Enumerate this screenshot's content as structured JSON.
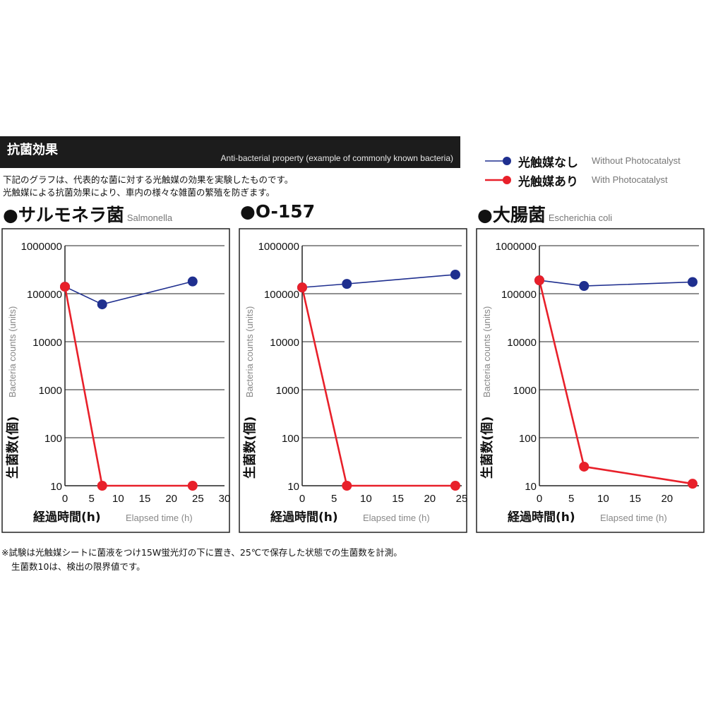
{
  "header": {
    "title": "抗菌効果",
    "subtitle": "Anti-bacterial property (example of commonly known bacteria)"
  },
  "intro": {
    "line1": "下記のグラフは、代表的な菌に対する光触媒の効果を実験したものです。",
    "line2": "光触媒による抗菌効果により、車内の様々な雑菌の繁殖を防ぎます。"
  },
  "legend": {
    "without": {
      "jp": "光触媒なし",
      "en": "Without Photocatalyst",
      "color": "#1f2f8f"
    },
    "with": {
      "jp": "光触媒あり",
      "en": "With Photocatalyst",
      "color": "#e8202a"
    }
  },
  "footnote": {
    "line1": "※試験は光触媒シートに菌液をつけ15W蛍光灯の下に置き、25℃で保存した状態での生菌数を計測。",
    "line2": "生菌数10は、検出の限界値です。"
  },
  "chart_data": [
    {
      "type": "line",
      "title": "●サルモネラ菌",
      "title_en": "Salmonella",
      "ylabel": "生菌数(個)",
      "ylabel_en": "Bacteria counts (units)",
      "xlabel": "経過時間(h)",
      "xlabel_en": "Elapsed time (h)",
      "yscale": "log",
      "ylim": [
        10,
        1000000
      ],
      "yticks": [
        "1000000",
        "100000",
        "10000",
        "1000",
        "100",
        "10"
      ],
      "xlim": [
        0,
        30
      ],
      "xticks": [
        "0",
        "5",
        "10",
        "15",
        "20",
        "25",
        "30"
      ],
      "grid": "horizontal",
      "series": [
        {
          "name": "光触媒なし",
          "color": "#1f2f8f",
          "x": [
            0,
            7,
            24
          ],
          "y": [
            140000,
            60000,
            180000
          ]
        },
        {
          "name": "光触媒あり",
          "color": "#e8202a",
          "x": [
            0,
            7,
            24
          ],
          "y": [
            140000,
            10,
            10
          ]
        }
      ]
    },
    {
      "type": "line",
      "title": "●O-157",
      "title_en": "",
      "ylabel": "生菌数(個)",
      "ylabel_en": "Bacteria counts (units)",
      "xlabel": "経過時間(h)",
      "xlabel_en": "Elapsed time (h)",
      "yscale": "log",
      "ylim": [
        10,
        1000000
      ],
      "yticks": [
        "1000000",
        "100000",
        "10000",
        "1000",
        "100",
        "10"
      ],
      "xlim": [
        0,
        25
      ],
      "xticks": [
        "0",
        "5",
        "10",
        "15",
        "20",
        "25"
      ],
      "grid": "horizontal",
      "series": [
        {
          "name": "光触媒なし",
          "color": "#1f2f8f",
          "x": [
            0,
            7,
            24
          ],
          "y": [
            135000,
            160000,
            250000
          ]
        },
        {
          "name": "光触媒あり",
          "color": "#e8202a",
          "x": [
            0,
            7,
            24
          ],
          "y": [
            135000,
            10,
            10
          ]
        }
      ]
    },
    {
      "type": "line",
      "title": "●大腸菌",
      "title_en": "Escherichia coli",
      "ylabel": "生菌数(個)",
      "ylabel_en": "Bacteria counts (units)",
      "xlabel": "経過時間(h)",
      "xlabel_en": "Elapsed time (h)",
      "yscale": "log",
      "ylim": [
        10,
        1000000
      ],
      "yticks": [
        "1000000",
        "100000",
        "10000",
        "1000",
        "100",
        "10"
      ],
      "xlim": [
        0,
        25
      ],
      "xticks": [
        "0",
        "5",
        "10",
        "15",
        "20"
      ],
      "grid": "horizontal",
      "series": [
        {
          "name": "光触媒なし",
          "color": "#1f2f8f",
          "x": [
            0,
            7,
            24
          ],
          "y": [
            190000,
            145000,
            175000
          ]
        },
        {
          "name": "光触媒あり",
          "color": "#e8202a",
          "x": [
            0,
            7,
            24
          ],
          "y": [
            190000,
            25,
            11
          ]
        }
      ]
    }
  ]
}
